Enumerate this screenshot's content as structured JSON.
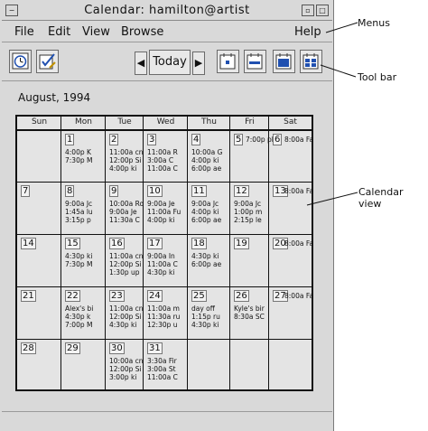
{
  "window": {
    "title": "Calendar: hamilton@artist"
  },
  "menus": [
    "File",
    "Edit",
    "View",
    "Browse"
  ],
  "help_menu": "Help",
  "toolbar": {
    "today_label": "Today",
    "prev_label": "◀",
    "next_label": "▶"
  },
  "month_label": "August, 1994",
  "weekdays": [
    "Sun",
    "Mon",
    "Tue",
    "Wed",
    "Thu",
    "Fri",
    "Sat"
  ],
  "weeks": [
    [
      {
        "day": "",
        "events": []
      },
      {
        "day": "1",
        "events": [
          "4:00p K",
          "7:30p M"
        ]
      },
      {
        "day": "2",
        "events": [
          "11:00a cn",
          "12:00p Si",
          "4:00p ki"
        ]
      },
      {
        "day": "3",
        "events": [
          "11:00a R",
          "3:00a C",
          "11:00a C"
        ]
      },
      {
        "day": "4",
        "events": [
          "10:00a G",
          "4:00p ki",
          "6:00p ae"
        ]
      },
      {
        "day": "5",
        "events": [
          "7:00p pl"
        ]
      },
      {
        "day": "6",
        "events": [
          "8:00a Fa"
        ]
      }
    ],
    [
      {
        "day": "7",
        "events": []
      },
      {
        "day": "8",
        "events": [
          "9:00a Jc",
          "1:45a lu",
          "3:15p p"
        ]
      },
      {
        "day": "9",
        "events": [
          "10:00a Ro",
          "9:00a Je",
          "11:30a C"
        ]
      },
      {
        "day": "10",
        "events": [
          "9:00a Je",
          "11:00a Fu",
          "4:00p ki"
        ]
      },
      {
        "day": "11",
        "events": [
          "9:00a Jc",
          "4:00p ki",
          "6:00p ae"
        ]
      },
      {
        "day": "12",
        "events": [
          "9:00a Jc",
          "1:00p m",
          "2:15p le"
        ]
      },
      {
        "day": "13",
        "events": [
          "8:00a Fa"
        ]
      }
    ],
    [
      {
        "day": "14",
        "events": []
      },
      {
        "day": "15",
        "events": [
          "4:30p ki",
          "7:30p M"
        ]
      },
      {
        "day": "16",
        "events": [
          "11:00a cn",
          "12:00p Si",
          "1:30p up"
        ]
      },
      {
        "day": "17",
        "events": [
          "9:00a In",
          "11:00a C",
          "4:30p ki"
        ]
      },
      {
        "day": "18",
        "events": [
          "4:30p ki",
          "6:00p ae"
        ]
      },
      {
        "day": "19",
        "events": []
      },
      {
        "day": "20",
        "events": [
          "8:00a Fa"
        ]
      }
    ],
    [
      {
        "day": "21",
        "events": []
      },
      {
        "day": "22",
        "events": [
          "Alex's bi",
          "4:30p k",
          "7:00p M"
        ]
      },
      {
        "day": "23",
        "events": [
          "11:00a cn",
          "12:00p Si",
          "4:30p ki"
        ]
      },
      {
        "day": "24",
        "events": [
          "11:00a m",
          "11:30a ru",
          "12:30p u"
        ]
      },
      {
        "day": "25",
        "events": [
          "day off",
          "1:15p ru",
          "4:30p ki"
        ]
      },
      {
        "day": "26",
        "events": [
          "Kyle's bir",
          "8:30a SC"
        ]
      },
      {
        "day": "27",
        "events": [
          "8:00a Fa"
        ]
      }
    ],
    [
      {
        "day": "28",
        "events": []
      },
      {
        "day": "29",
        "events": []
      },
      {
        "day": "30",
        "events": [
          "10:00a cn",
          "12:00p Si",
          "3:00p ki"
        ]
      },
      {
        "day": "31",
        "events": [
          "3:30a Fir",
          "3:00a St",
          "11:00a C"
        ]
      },
      {
        "day": "",
        "events": []
      },
      {
        "day": "",
        "events": []
      },
      {
        "day": "",
        "events": []
      }
    ]
  ],
  "annotations": {
    "menus": "Menus",
    "toolbar": "Tool bar",
    "calendar_view": "Calendar view"
  }
}
